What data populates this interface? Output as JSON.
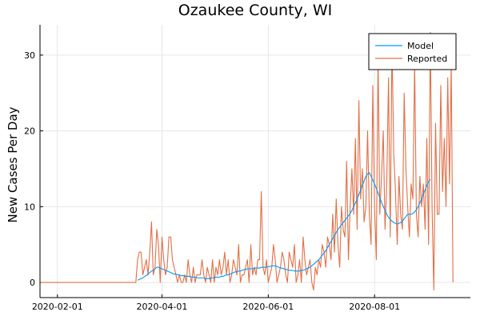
{
  "chart_data": {
    "type": "line",
    "title": "Ozaukee County, WI",
    "xlabel": "",
    "ylabel": "New Cases Per Day",
    "xlim": [
      "2020-01-22",
      "2020-09-25"
    ],
    "ylim": [
      -2,
      34
    ],
    "x_ticks": [
      "2020-02-01",
      "2020-04-01",
      "2020-06-01",
      "2020-08-01"
    ],
    "y_ticks": [
      0,
      10,
      20,
      30
    ],
    "grid": true,
    "legend_position": "top-right",
    "series": [
      {
        "name": "Model",
        "color": "#009AFA",
        "start": "2020-03-18",
        "values": [
          0.3,
          0.4,
          0.5,
          0.6,
          0.8,
          0.9,
          1.1,
          1.3,
          1.5,
          1.6,
          1.8,
          2.0,
          2.0,
          1.9,
          1.8,
          1.7,
          1.6,
          1.5,
          1.4,
          1.3,
          1.2,
          1.1,
          1.1,
          1.0,
          1.0,
          0.9,
          0.9,
          0.9,
          0.8,
          0.8,
          0.8,
          0.7,
          0.7,
          0.7,
          0.6,
          0.6,
          0.6,
          0.6,
          0.6,
          0.5,
          0.5,
          0.5,
          0.6,
          0.6,
          0.6,
          0.7,
          0.7,
          0.7,
          0.8,
          0.8,
          0.9,
          1.0,
          1.0,
          1.1,
          1.2,
          1.3,
          1.4,
          1.4,
          1.5,
          1.5,
          1.6,
          1.7,
          1.7,
          1.8,
          1.8,
          1.8,
          1.8,
          1.9,
          1.9,
          1.9,
          1.9,
          2.0,
          2.0,
          2.0,
          2.0,
          2.1,
          2.1,
          2.2,
          2.2,
          2.2,
          2.1,
          2.0,
          1.9,
          1.9,
          1.8,
          1.7,
          1.7,
          1.6,
          1.6,
          1.6,
          1.5,
          1.5,
          1.5,
          1.5,
          1.6,
          1.6,
          1.7,
          1.8,
          1.9,
          2.0,
          2.2,
          2.4,
          2.6,
          2.8,
          3.0,
          3.3,
          3.6,
          3.9,
          4.2,
          4.6,
          5.0,
          5.4,
          5.8,
          6.2,
          6.6,
          7.0,
          7.3,
          7.6,
          7.9,
          8.2,
          8.5,
          8.8,
          9.1,
          9.5,
          10.0,
          10.5,
          11.0,
          11.6,
          12.2,
          12.8,
          13.4,
          14.0,
          14.3,
          14.5,
          14.0,
          13.5,
          13.0,
          12.4,
          11.8,
          11.2,
          10.6,
          10.0,
          9.5,
          9.0,
          8.6,
          8.3,
          8.1,
          7.9,
          7.8,
          7.7,
          7.8,
          7.9,
          8.1,
          8.4,
          8.7,
          9.0,
          9.0,
          9.0,
          9.1,
          9.3,
          9.6,
          10.0,
          10.5,
          11.0,
          11.6,
          12.2,
          12.8,
          13.3,
          13.6
        ]
      },
      {
        "name": "Reported",
        "color": "#E26F46",
        "start": "2020-01-22",
        "values": [
          0,
          0,
          0,
          0,
          0,
          0,
          0,
          0,
          0,
          0,
          0,
          0,
          0,
          0,
          0,
          0,
          0,
          0,
          0,
          0,
          0,
          0,
          0,
          0,
          0,
          0,
          0,
          0,
          0,
          0,
          0,
          0,
          0,
          0,
          0,
          0,
          0,
          0,
          0,
          0,
          0,
          0,
          0,
          0,
          0,
          0,
          0,
          0,
          0,
          0,
          0,
          0,
          0,
          0,
          0,
          0,
          3,
          4,
          4,
          1,
          2,
          3,
          1,
          4,
          8,
          1,
          2,
          7,
          5,
          0,
          6,
          3,
          1,
          2,
          6,
          6,
          3,
          2,
          1,
          0,
          1,
          0,
          0,
          1,
          0,
          3,
          1,
          0,
          2,
          0,
          1,
          1,
          1,
          3,
          1,
          0,
          2,
          1,
          0,
          3,
          0,
          2,
          1,
          3,
          1,
          2,
          4,
          1,
          3,
          0,
          1,
          3,
          2,
          1,
          5,
          0,
          1,
          1,
          2,
          3,
          0,
          5,
          1,
          2,
          1,
          3,
          3,
          12,
          2,
          1,
          3,
          0,
          1,
          2,
          5,
          3,
          0,
          1,
          2,
          4,
          3,
          1,
          0,
          4,
          3,
          2,
          5,
          0,
          1,
          3,
          0,
          6,
          3,
          1,
          2,
          3,
          0,
          -1,
          2,
          1,
          3,
          2,
          5,
          4,
          2,
          6,
          5,
          3,
          9,
          4,
          11,
          5,
          2,
          10,
          7,
          6,
          16,
          3,
          10,
          15,
          9,
          19,
          7,
          24,
          11,
          15,
          8,
          10,
          20,
          9,
          5,
          26,
          10,
          3,
          30,
          9,
          14,
          20,
          7,
          13,
          27,
          6,
          32,
          17,
          12,
          5,
          14,
          9,
          7,
          25,
          15,
          10,
          6,
          13,
          11,
          29,
          9,
          6,
          14,
          10,
          13,
          7,
          19,
          5,
          33,
          10,
          -1,
          21,
          9,
          9,
          26,
          12,
          19,
          10,
          27,
          13,
          29,
          0
        ]
      }
    ]
  }
}
